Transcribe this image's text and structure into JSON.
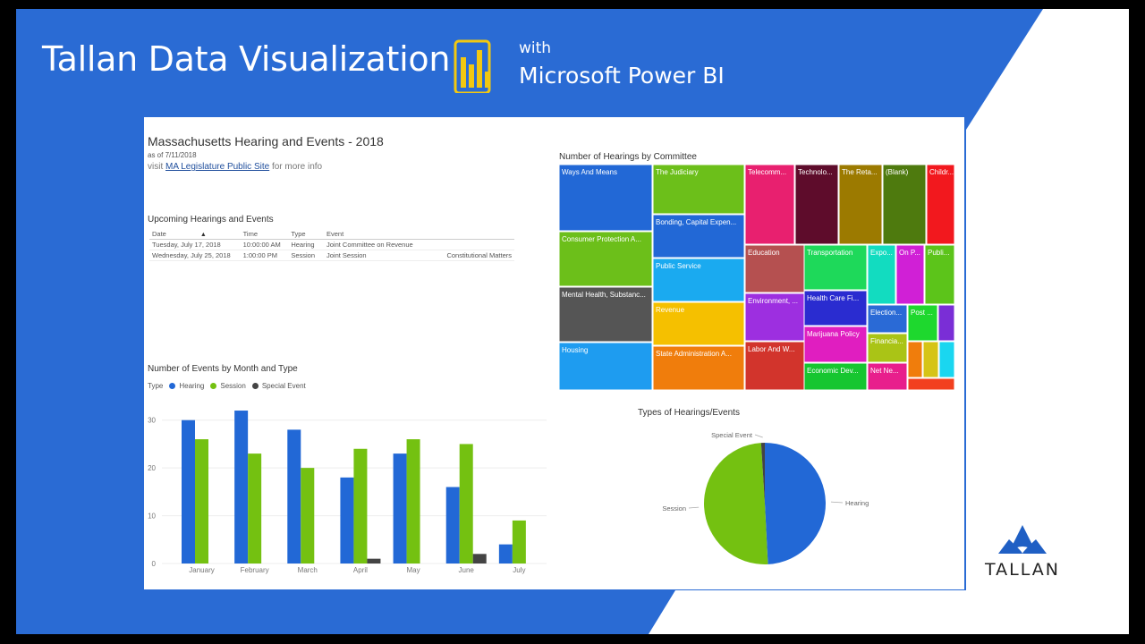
{
  "header": {
    "title": "Tallan Data Visualization",
    "with_text": "with",
    "product": "Microsoft Power BI",
    "brand": "TALLAN"
  },
  "colors": {
    "blue": "#2268d6",
    "green": "#74c111",
    "dark_gray": "#444444",
    "slide_blue": "#2a6bd4"
  },
  "report": {
    "title": "Massachusetts Hearing and Events - 2018",
    "as_of": "as of 7/11/2018",
    "visit_prefix": "visit",
    "visit_link": "MA Legislature Public Site",
    "visit_suffix": "for more info"
  },
  "upcoming": {
    "title": "Upcoming Hearings and Events",
    "columns": [
      "Date",
      "Time",
      "Type",
      "Event",
      ""
    ],
    "rows": [
      [
        "Tuesday, July 17, 2018",
        "10:00:00 AM",
        "Hearing",
        "Joint Committee on Revenue",
        ""
      ],
      [
        "Wednesday, July 25, 2018",
        "1:00:00 PM",
        "Session",
        "Joint Session",
        "Constitutional Matters"
      ]
    ]
  },
  "bar_chart": {
    "title": "Number of Events by Month and Type",
    "legend_label": "Type",
    "legend": [
      {
        "name": "Hearing",
        "color": "#2268d6"
      },
      {
        "name": "Session",
        "color": "#74c111"
      },
      {
        "name": "Special Event",
        "color": "#444444"
      }
    ]
  },
  "treemap": {
    "title": "Number of Hearings by Committee",
    "cells": [
      {
        "label": "Ways And Means",
        "color": "#2268d6"
      },
      {
        "label": "Consumer Protection A...",
        "color": "#6cbf1a"
      },
      {
        "label": "Mental Health, Substanc...",
        "color": "#555555"
      },
      {
        "label": "Housing",
        "color": "#1e9cf0"
      },
      {
        "label": "The Judiciary",
        "color": "#6cbf1a"
      },
      {
        "label": "Bonding, Capital Expen...",
        "color": "#2268d6"
      },
      {
        "label": "Public Service",
        "color": "#1aaaf0"
      },
      {
        "label": "Revenue",
        "color": "#f5c000"
      },
      {
        "label": "State Administration A...",
        "color": "#f07d0c"
      },
      {
        "label": "Telecomm...",
        "color": "#e8206f"
      },
      {
        "label": "Technolo...",
        "color": "#5e0c2b"
      },
      {
        "label": "The Reta...",
        "color": "#9c7a00"
      },
      {
        "label": "(Blank)",
        "color": "#4e7a0e"
      },
      {
        "label": "Childr...",
        "color": "#f2181e"
      },
      {
        "label": "Education",
        "color": "#b55050"
      },
      {
        "label": "Environment, ...",
        "color": "#9d2fe0"
      },
      {
        "label": "Labor And W...",
        "color": "#d2342c"
      },
      {
        "label": "Transportation",
        "color": "#1ed95a"
      },
      {
        "label": "Health Care Fi...",
        "color": "#2a2cd0"
      },
      {
        "label": "Marijuana Policy",
        "color": "#e01ec0"
      },
      {
        "label": "Economic Dev...",
        "color": "#16c630"
      },
      {
        "label": "Expo...",
        "color": "#12dcc0"
      },
      {
        "label": "On P...",
        "color": "#d020d6"
      },
      {
        "label": "Publi...",
        "color": "#5cc41a"
      },
      {
        "label": "Election...",
        "color": "#2a6ad6"
      },
      {
        "label": "Financia...",
        "color": "#aac416"
      },
      {
        "label": "Net Ne...",
        "color": "#e81e8c"
      },
      {
        "label": "Post ...",
        "color": "#1ed82e"
      },
      {
        "label": "",
        "color": "#7a2ed6"
      },
      {
        "label": "",
        "color": "#f07d0c"
      },
      {
        "label": "",
        "color": "#d6c416"
      },
      {
        "label": "",
        "color": "#1ad6f0"
      },
      {
        "label": "",
        "color": "#f2401e"
      }
    ]
  },
  "pie": {
    "title": "Types of Hearings/Events"
  },
  "chart_data": [
    {
      "type": "bar",
      "title": "Number of Events by Month and Type",
      "categories": [
        "January",
        "February",
        "March",
        "April",
        "May",
        "June",
        "July"
      ],
      "series": [
        {
          "name": "Hearing",
          "values": [
            30,
            32,
            28,
            18,
            23,
            16,
            4
          ]
        },
        {
          "name": "Session",
          "values": [
            26,
            23,
            20,
            24,
            26,
            25,
            9
          ]
        },
        {
          "name": "Special Event",
          "values": [
            0,
            0,
            0,
            1,
            0,
            2,
            0
          ]
        }
      ],
      "y_ticks": [
        0,
        10,
        20,
        30
      ],
      "ylim": [
        0,
        35
      ],
      "grid": true,
      "legend": "top-left"
    },
    {
      "type": "pie",
      "title": "Types of Hearings/Events",
      "labels": [
        "Hearing",
        "Session",
        "Special Event"
      ],
      "values": [
        151,
        153,
        3
      ]
    }
  ]
}
